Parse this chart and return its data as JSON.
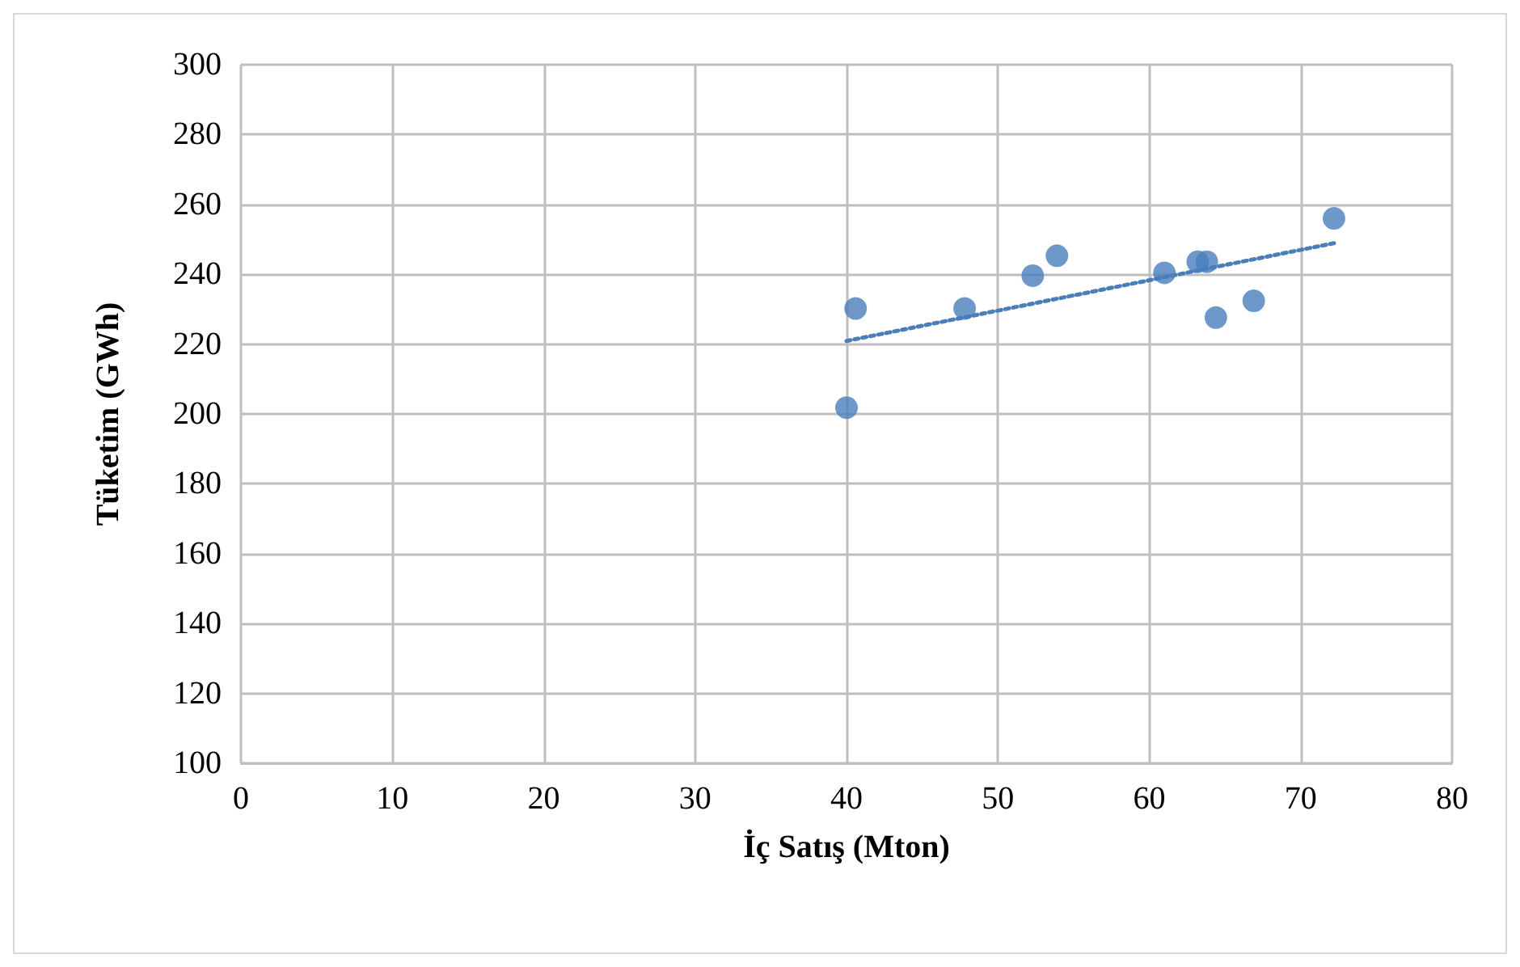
{
  "chart_data": {
    "type": "scatter",
    "xlabel": "İç Satış (Mton)",
    "ylabel": "Tüketim (GWh)",
    "xlim": [
      0,
      80
    ],
    "xticks": [
      0,
      10,
      20,
      30,
      40,
      50,
      60,
      70,
      80
    ],
    "ylim": [
      100,
      300
    ],
    "yticks": [
      100,
      120,
      140,
      160,
      180,
      200,
      220,
      240,
      260,
      280,
      300
    ],
    "grid": true,
    "marker": "circle",
    "series": [
      {
        "type": "scatter",
        "color": "#4a7ebb",
        "x": [
          40.0,
          40.6,
          47.8,
          52.3,
          53.9,
          61.0,
          63.2,
          63.8,
          64.4,
          66.9,
          72.2
        ],
        "values": [
          201.8,
          230.2,
          230.2,
          239.6,
          245.3,
          240.4,
          243.6,
          243.6,
          227.6,
          232.4,
          256.0
        ]
      },
      {
        "type": "line",
        "color": "#4a7ebb",
        "line_style": "dotted",
        "marker": "none",
        "x": [
          40.0,
          72.2
        ],
        "values": [
          220.9,
          248.9
        ]
      }
    ]
  }
}
